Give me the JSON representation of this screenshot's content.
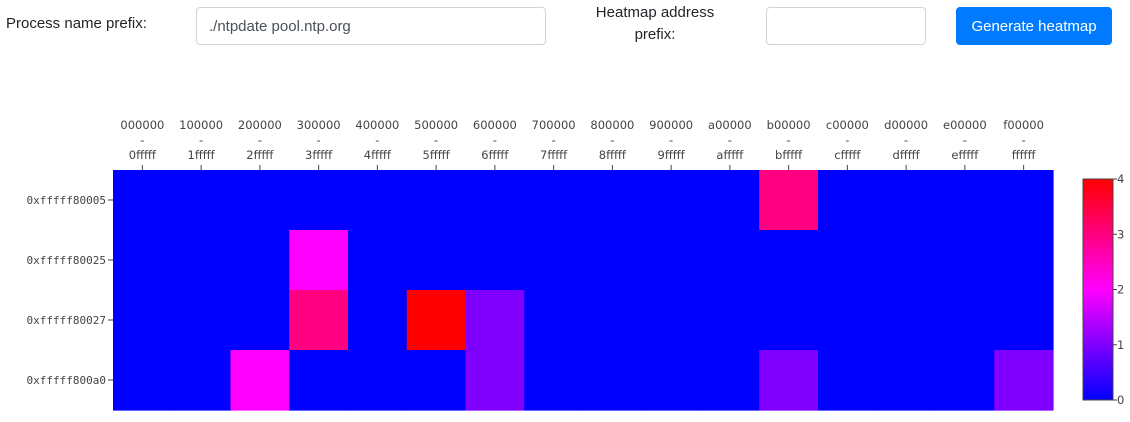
{
  "form": {
    "process_label": "Process name prefix:",
    "process_value": "./ntpdate pool.ntp.org",
    "heatmap_label_line1": "Heatmap address",
    "heatmap_label_line2": "prefix:",
    "heatmap_prefix_value": "",
    "generate_button": "Generate heatmap"
  },
  "chart_data": {
    "type": "heatmap",
    "x_categories": [
      [
        "000000",
        "-",
        "0fffff"
      ],
      [
        "100000",
        "-",
        "1fffff"
      ],
      [
        "200000",
        "-",
        "2fffff"
      ],
      [
        "300000",
        "-",
        "3fffff"
      ],
      [
        "400000",
        "-",
        "4fffff"
      ],
      [
        "500000",
        "-",
        "5fffff"
      ],
      [
        "600000",
        "-",
        "6fffff"
      ],
      [
        "700000",
        "-",
        "7fffff"
      ],
      [
        "800000",
        "-",
        "8fffff"
      ],
      [
        "900000",
        "-",
        "9fffff"
      ],
      [
        "a00000",
        "-",
        "afffff"
      ],
      [
        "b00000",
        "-",
        "bfffff"
      ],
      [
        "c00000",
        "-",
        "cfffff"
      ],
      [
        "d00000",
        "-",
        "dfffff"
      ],
      [
        "e00000",
        "-",
        "efffff"
      ],
      [
        "f00000",
        "-",
        "ffffff"
      ]
    ],
    "y_categories": [
      "0xfffff80005",
      "0xfffff80025",
      "0xfffff80027",
      "0xfffff800a0"
    ],
    "z": [
      [
        0,
        0,
        0,
        0,
        0,
        0,
        0,
        0,
        0,
        0,
        0,
        3,
        0,
        0,
        0,
        0
      ],
      [
        0,
        0,
        0,
        2,
        0,
        0,
        0,
        0,
        0,
        0,
        0,
        0,
        0,
        0,
        0,
        0
      ],
      [
        0,
        0,
        0,
        3,
        0,
        4,
        1,
        0,
        0,
        0,
        0,
        0,
        0,
        0,
        0,
        0
      ],
      [
        0,
        0,
        2,
        0,
        0,
        0,
        1,
        0,
        0,
        0,
        0,
        1,
        0,
        0,
        0,
        1
      ]
    ],
    "zmin": 0,
    "zmax": 4,
    "colorscale": [
      "#0000ff",
      "#ff00ff",
      "#ff0000"
    ],
    "colorbar_ticks": [
      "0",
      "1",
      "2",
      "3",
      "4"
    ]
  }
}
